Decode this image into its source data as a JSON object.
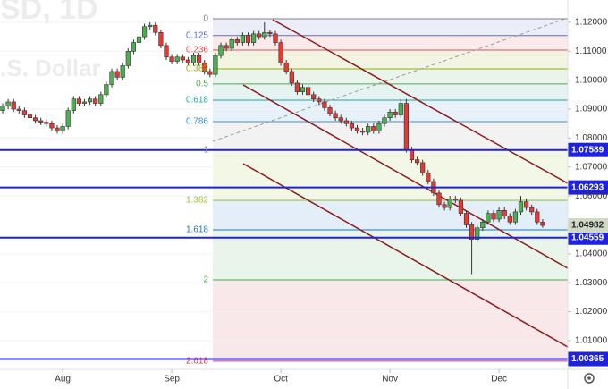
{
  "chart_data": {
    "type": "candlestick",
    "watermark": [
      "SD, 1D",
      ".S. Dollar"
    ],
    "categories": [
      null,
      null,
      null,
      null,
      null,
      null,
      null,
      null,
      null,
      null,
      null,
      "Aug",
      null,
      null,
      null,
      null,
      null,
      null,
      null,
      null,
      null,
      null,
      null,
      null,
      null,
      null,
      null,
      null,
      null,
      null,
      null,
      "Sep",
      null,
      null,
      null,
      null,
      null,
      null,
      null,
      null,
      null,
      null,
      null,
      null,
      null,
      null,
      null,
      null,
      null,
      null,
      null,
      "Oct",
      null,
      null,
      null,
      null,
      null,
      null,
      null,
      null,
      null,
      null,
      null,
      null,
      null,
      null,
      null,
      null,
      null,
      null,
      null,
      "Nov",
      null,
      null,
      null,
      null,
      null,
      null,
      null,
      null,
      null,
      null,
      null,
      null,
      null,
      null,
      null,
      null,
      null,
      null,
      null,
      "Dec",
      null,
      null,
      null,
      null,
      null,
      null,
      null,
      null
    ],
    "up_color": "#4caf50",
    "down_color": "#e53935",
    "series": [
      {
        "open": [
          1.0895,
          1.091,
          1.0925,
          1.09,
          1.0895,
          1.088,
          1.087,
          1.086,
          1.0855,
          1.085,
          1.0835,
          1.0825,
          1.084,
          1.0895,
          1.0935,
          1.092,
          1.0925,
          1.0935,
          1.092,
          1.095,
          1.0985,
          1.103,
          1.101,
          1.105,
          1.11,
          1.113,
          1.115,
          1.1185,
          1.119,
          1.1165,
          1.112,
          1.108,
          1.1065,
          1.108,
          1.107,
          1.106,
          1.1085,
          1.106,
          1.103,
          1.102,
          1.1085,
          1.112,
          1.111,
          1.114,
          1.113,
          1.1155,
          1.113,
          1.116,
          1.115,
          1.1165,
          1.116,
          1.113,
          1.106,
          1.103,
          1.099,
          1.096,
          1.0975,
          1.095,
          1.0935,
          1.0925,
          1.0905,
          1.0885,
          1.087,
          1.086,
          1.085,
          1.0835,
          1.0825,
          1.082,
          1.084,
          1.0825,
          1.085,
          1.087,
          1.089,
          1.088,
          1.092,
          1.076,
          1.0725,
          1.0715,
          1.068,
          1.065,
          1.061,
          1.057,
          1.056,
          1.059,
          1.0585,
          1.054,
          1.05,
          1.045,
          1.049,
          1.051,
          1.054,
          1.052,
          1.055,
          1.053,
          1.051,
          1.0545,
          1.058,
          1.056,
          1.0545,
          1.051
        ],
        "high": [
          1.092,
          1.0935,
          1.0935,
          1.091,
          1.0905,
          1.089,
          1.088,
          1.087,
          1.0865,
          1.086,
          1.0845,
          1.085,
          1.0905,
          1.0945,
          1.0945,
          1.0935,
          1.0945,
          1.0945,
          1.096,
          1.0995,
          1.104,
          1.104,
          1.106,
          1.111,
          1.114,
          1.116,
          1.1195,
          1.12,
          1.12,
          1.1175,
          1.113,
          1.109,
          1.109,
          1.109,
          1.108,
          1.1095,
          1.1095,
          1.107,
          1.104,
          1.1095,
          1.113,
          1.113,
          1.115,
          1.115,
          1.1165,
          1.1165,
          1.117,
          1.117,
          1.12,
          1.1175,
          1.117,
          1.114,
          1.107,
          1.104,
          1.1,
          1.0985,
          1.0985,
          1.096,
          1.0945,
          1.0935,
          1.0915,
          1.0895,
          1.088,
          1.087,
          1.086,
          1.0845,
          1.0835,
          1.085,
          1.085,
          1.086,
          1.088,
          1.09,
          1.09,
          1.0935,
          1.0935,
          1.077,
          1.0735,
          1.0725,
          1.069,
          1.066,
          1.062,
          1.058,
          1.06,
          1.06,
          1.0595,
          1.055,
          1.051,
          1.05,
          1.052,
          1.055,
          1.055,
          1.056,
          1.056,
          1.054,
          1.0555,
          1.06,
          1.059,
          1.057,
          1.0555,
          1.052
        ],
        "low": [
          1.0885,
          1.09,
          1.089,
          1.0885,
          1.087,
          1.086,
          1.085,
          1.0845,
          1.084,
          1.0825,
          1.0815,
          1.0815,
          1.083,
          1.0885,
          1.091,
          1.091,
          1.0915,
          1.091,
          1.091,
          1.094,
          1.0975,
          1.1,
          1.1,
          1.104,
          1.109,
          1.112,
          1.114,
          1.1175,
          1.1155,
          1.111,
          1.107,
          1.1055,
          1.1055,
          1.106,
          1.105,
          1.105,
          1.105,
          1.102,
          1.101,
          1.101,
          1.1075,
          1.11,
          1.11,
          1.112,
          1.112,
          1.112,
          1.112,
          1.114,
          1.114,
          1.115,
          1.112,
          1.105,
          1.102,
          1.098,
          1.095,
          1.095,
          1.094,
          1.0925,
          1.0915,
          1.0895,
          1.0875,
          1.086,
          1.085,
          1.084,
          1.0825,
          1.0815,
          1.081,
          1.081,
          1.0815,
          1.0815,
          1.084,
          1.086,
          1.087,
          1.087,
          1.075,
          1.0715,
          1.0705,
          1.067,
          1.064,
          1.06,
          1.056,
          1.055,
          1.055,
          1.0575,
          1.053,
          1.049,
          1.033,
          1.044,
          1.048,
          1.05,
          1.051,
          1.051,
          1.052,
          1.05,
          1.05,
          1.0535,
          1.055,
          1.0535,
          1.05,
          1.049
        ],
        "close": [
          1.091,
          1.0925,
          1.09,
          1.0895,
          1.088,
          1.087,
          1.086,
          1.0855,
          1.085,
          1.0835,
          1.0825,
          1.084,
          1.0895,
          1.0935,
          1.092,
          1.0925,
          1.0935,
          1.092,
          1.095,
          1.0985,
          1.103,
          1.101,
          1.105,
          1.11,
          1.113,
          1.115,
          1.1185,
          1.119,
          1.1165,
          1.112,
          1.108,
          1.1065,
          1.108,
          1.107,
          1.106,
          1.1085,
          1.106,
          1.103,
          1.102,
          1.1085,
          1.112,
          1.111,
          1.114,
          1.113,
          1.1155,
          1.113,
          1.116,
          1.115,
          1.1165,
          1.116,
          1.113,
          1.106,
          1.103,
          1.099,
          1.096,
          1.0975,
          1.095,
          1.0935,
          1.0925,
          1.0905,
          1.0885,
          1.087,
          1.086,
          1.085,
          1.0835,
          1.0825,
          1.082,
          1.084,
          1.0825,
          1.085,
          1.087,
          1.089,
          1.088,
          1.092,
          1.076,
          1.0725,
          1.0715,
          1.068,
          1.065,
          1.061,
          1.057,
          1.056,
          1.059,
          1.0585,
          1.054,
          1.05,
          1.045,
          1.049,
          1.051,
          1.054,
          1.052,
          1.055,
          1.053,
          1.051,
          1.0545,
          1.058,
          1.056,
          1.0545,
          1.051,
          1.04982
        ]
      }
    ],
    "ylim": [
      1.0001,
      1.1277
    ],
    "yticks": [
      {
        "value": 1.12,
        "label": "1.12000"
      },
      {
        "value": 1.11,
        "label": "1.11000"
      },
      {
        "value": 1.1,
        "label": "1.10000"
      },
      {
        "value": 1.09,
        "label": "1.09000"
      },
      {
        "value": 1.08,
        "label": "1.08000"
      },
      {
        "value": 1.07,
        "label": "1.07000"
      },
      {
        "value": 1.06,
        "label": "1.06000"
      },
      {
        "value": 1.04,
        "label": "1.04000"
      },
      {
        "value": 1.03,
        "label": "1.03000"
      },
      {
        "value": 1.02,
        "label": "1.02000"
      },
      {
        "value": 1.01,
        "label": "1.01000"
      }
    ],
    "grid": true,
    "fib_levels": [
      {
        "ratio": 0,
        "value": 1.1212,
        "color": "#808080"
      },
      {
        "ratio": 0.125,
        "value": 1.1154,
        "color": "#5d6fd0"
      },
      {
        "ratio": 0.236,
        "value": 1.1104,
        "color": "#e05050"
      },
      {
        "ratio": 0.382,
        "value": 1.1039,
        "color": "#9ab010"
      },
      {
        "ratio": 0.5,
        "value": 1.0987,
        "color": "#4caf50"
      },
      {
        "ratio": 0.618,
        "value": 1.0931,
        "color": "#26a69a"
      },
      {
        "ratio": 0.786,
        "value": 1.0857,
        "color": "#3d8fd0"
      },
      {
        "ratio": 1,
        "value": 1.0758,
        "color": "#909090"
      },
      {
        "ratio": 1.382,
        "value": 1.0585,
        "color": "#9bc530"
      },
      {
        "ratio": 1.618,
        "value": 1.0483,
        "color": "#2070d0"
      },
      {
        "ratio": 2,
        "value": 1.031,
        "color": "#4caf50"
      },
      {
        "ratio": 2.618,
        "value": 1.0029,
        "color": "#d04050"
      }
    ],
    "levels_color": "#1f22dd",
    "levels": [
      {
        "value": 1.07589,
        "label": "1.07589"
      },
      {
        "value": 1.06293,
        "label": "1.06293"
      },
      {
        "value": 1.04559,
        "label": "1.04559"
      },
      {
        "value": 1.00365,
        "label": "1.00365"
      }
    ],
    "last_price": {
      "value": 1.04982,
      "label": "1.04982"
    }
  }
}
